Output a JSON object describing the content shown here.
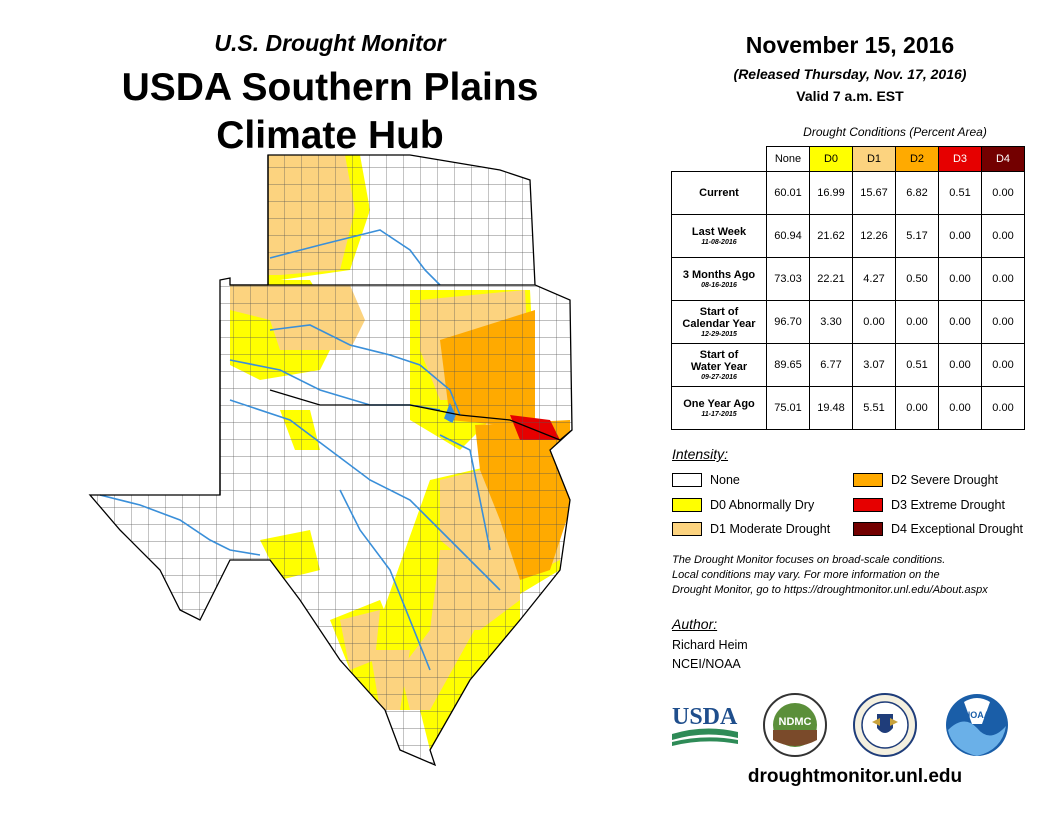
{
  "header": {
    "subtitle": "U.S. Drought Monitor",
    "title_line1": "USDA Southern Plains",
    "title_line2": "Climate Hub"
  },
  "release": {
    "date": "November 15, 2016",
    "released": "(Released Thursday, Nov. 17, 2016)",
    "valid": "Valid 7 a.m. EST"
  },
  "table": {
    "caption": "Drought Conditions (Percent Area)",
    "columns": [
      "None",
      "D0",
      "D1",
      "D2",
      "D3",
      "D4"
    ],
    "column_colors": [
      "#ffffff",
      "#ffff00",
      "#fcd37f",
      "#ffaa00",
      "#e60000",
      "#730000"
    ],
    "rows": [
      {
        "label": "Current",
        "label2": "",
        "date": "",
        "values": [
          "60.01",
          "16.99",
          "15.67",
          "6.82",
          "0.51",
          "0.00"
        ]
      },
      {
        "label": "Last Week",
        "label2": "",
        "date": "11-08-2016",
        "values": [
          "60.94",
          "21.62",
          "12.26",
          "5.17",
          "0.00",
          "0.00"
        ]
      },
      {
        "label": "3 Months Ago",
        "label2": "",
        "date": "08-16-2016",
        "values": [
          "73.03",
          "22.21",
          "4.27",
          "0.50",
          "0.00",
          "0.00"
        ]
      },
      {
        "label": "Start of",
        "label2": "Calendar Year",
        "date": "12-29-2015",
        "values": [
          "96.70",
          "3.30",
          "0.00",
          "0.00",
          "0.00",
          "0.00"
        ]
      },
      {
        "label": "Start of",
        "label2": "Water Year",
        "date": "09-27-2016",
        "values": [
          "89.65",
          "6.77",
          "3.07",
          "0.51",
          "0.00",
          "0.00"
        ]
      },
      {
        "label": "One Year Ago",
        "label2": "",
        "date": "11-17-2015",
        "values": [
          "75.01",
          "19.48",
          "5.51",
          "0.00",
          "0.00",
          "0.00"
        ]
      }
    ]
  },
  "legend": {
    "title": "Intensity:",
    "items": [
      {
        "label": "None",
        "color": "#ffffff"
      },
      {
        "label": "D0 Abnormally Dry",
        "color": "#ffff00"
      },
      {
        "label": "D1 Moderate Drought",
        "color": "#fcd37f"
      },
      {
        "label": "D2 Severe Drought",
        "color": "#ffaa00"
      },
      {
        "label": "D3 Extreme Drought",
        "color": "#e60000"
      },
      {
        "label": "D4 Exceptional Drought",
        "color": "#730000"
      }
    ]
  },
  "note": {
    "line1": "The Drought Monitor focuses on broad-scale conditions.",
    "line2": "Local conditions may vary. For more information on the",
    "line3": "Drought Monitor, go to https://droughtmonitor.unl.edu/About.aspx"
  },
  "author": {
    "title": "Author:",
    "name": "Richard Heim",
    "org": "NCEI/NOAA"
  },
  "logos": {
    "usda_text": "USDA",
    "ndmc_text": "NDMC",
    "noaa_text": "NOAA"
  },
  "footer": {
    "url": "droughtmonitor.unl.edu"
  },
  "map_colors": {
    "water": "#3a8fd9",
    "county_lines": "#555555",
    "state_lines": "#000000"
  }
}
